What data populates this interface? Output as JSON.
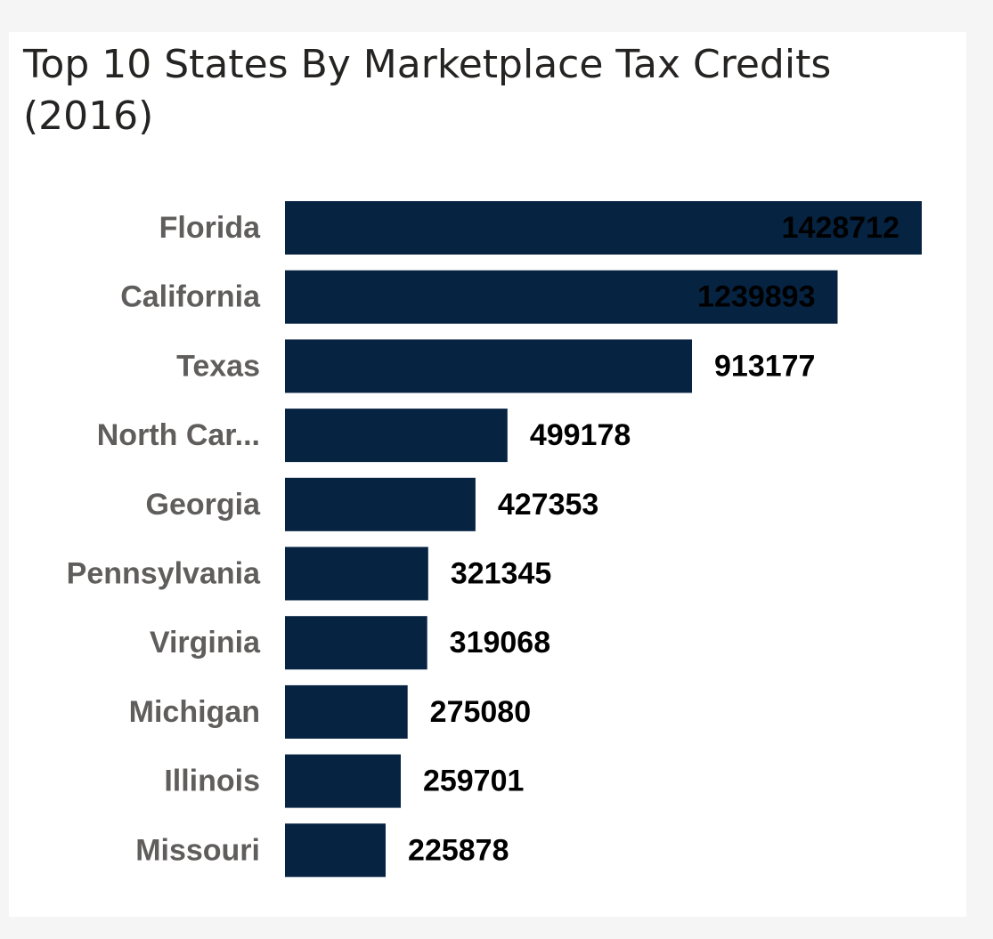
{
  "chart_data": {
    "type": "bar",
    "orientation": "horizontal",
    "title": "Top 10 States By Marketplace Tax Credits (2016)",
    "categories": [
      "Florida",
      "California",
      "Texas",
      "North Car...",
      "Georgia",
      "Pennsylvania",
      "Virginia",
      "Michigan",
      "Illinois",
      "Missouri"
    ],
    "values": [
      1428712,
      1239893,
      913177,
      499178,
      427353,
      321345,
      319068,
      275080,
      259701,
      225878
    ],
    "bar_color": "#062342",
    "xlim": [
      0,
      1428712
    ],
    "data_labels": true,
    "grid": false,
    "legend": "none"
  }
}
